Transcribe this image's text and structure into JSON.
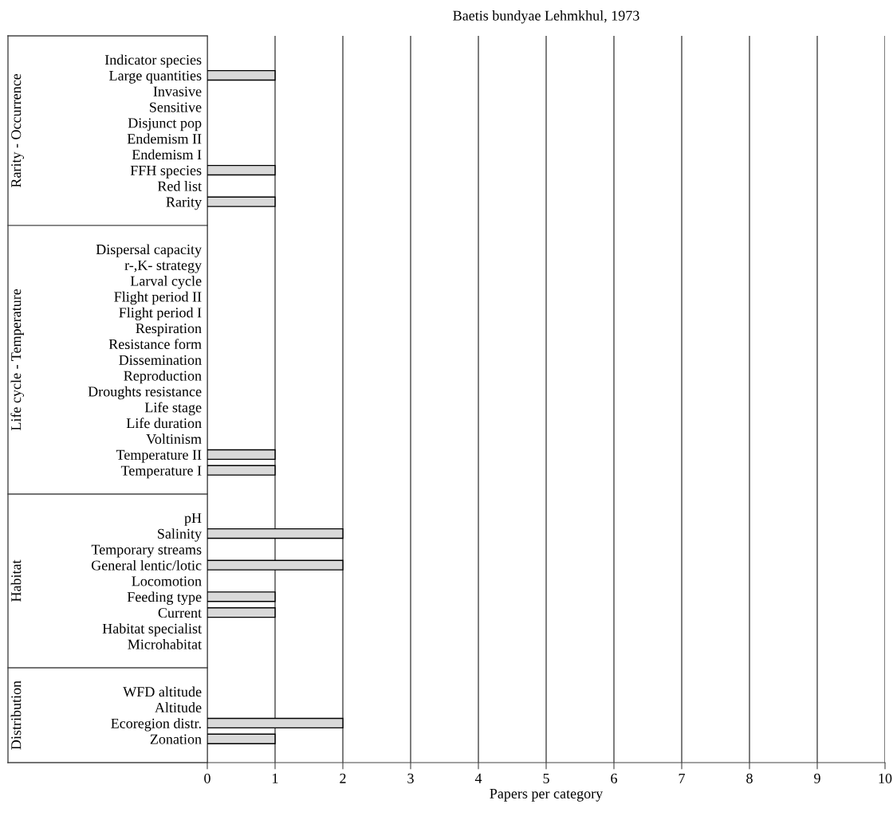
{
  "chart_data": [
    {
      "type": "bar",
      "orientation": "horizontal",
      "title": "Baetis bundyae Lehmkhul, 1973",
      "ylabel": "Rarity - Occurrence",
      "categories": [
        "Indicator species",
        "Large quantities",
        "Invasive",
        "Sensitive",
        "Disjunct pop",
        "Endemism II",
        "Endemism I",
        "FFH species",
        "Red list",
        "Rarity"
      ],
      "values": [
        null,
        1,
        null,
        null,
        null,
        null,
        null,
        1,
        null,
        1
      ],
      "color": "#d9d9d9",
      "xlim": [
        0,
        10
      ],
      "xticks": [
        0,
        1,
        2,
        3,
        4,
        5,
        6,
        7,
        8,
        9,
        10
      ],
      "grid": "x",
      "tick_labels": "y"
    },
    {
      "type": "bar",
      "orientation": "horizontal",
      "ylabel": "Life cycle - Temperature",
      "categories": [
        "Dispersal capacity",
        "r-,K- strategy",
        "Larval cycle",
        "Flight period II",
        "Flight period I",
        "Respiration",
        "Resistance form",
        "Dissemination",
        "Reproduction",
        "Droughts resistance",
        "Life stage",
        "Life duration",
        "Voltinism",
        "Temperature II",
        "Temperature I"
      ],
      "values": [
        null,
        null,
        null,
        null,
        null,
        null,
        null,
        null,
        null,
        null,
        null,
        null,
        null,
        1,
        1
      ],
      "color": "#d9d9d9",
      "xlim": [
        0,
        10
      ],
      "xticks": [
        0,
        1,
        2,
        3,
        4,
        5,
        6,
        7,
        8,
        9,
        10
      ],
      "grid": "x",
      "tick_labels": "y"
    },
    {
      "type": "bar",
      "orientation": "horizontal",
      "ylabel": "Habitat",
      "categories": [
        "pH",
        "Salinity",
        "Temporary streams",
        "General lentic/lotic",
        "Locomotion",
        "Feeding type",
        "Current",
        "Habitat specialist",
        "Microhabitat"
      ],
      "values": [
        null,
        2,
        null,
        2,
        null,
        1,
        1,
        null,
        null
      ],
      "color": "#d9d9d9",
      "xlim": [
        0,
        10
      ],
      "xticks": [
        0,
        1,
        2,
        3,
        4,
        5,
        6,
        7,
        8,
        9,
        10
      ],
      "grid": "x",
      "tick_labels": "y"
    },
    {
      "type": "bar",
      "orientation": "horizontal",
      "ylabel": "Distribution",
      "xlabel": "Papers per category",
      "categories": [
        "WFD altitude",
        "Altitude",
        "Ecoregion distr.",
        "Zonation"
      ],
      "values": [
        null,
        null,
        2,
        1
      ],
      "color": "#d9d9d9",
      "xlim": [
        0,
        10
      ],
      "xticks": [
        0,
        1,
        2,
        3,
        4,
        5,
        6,
        7,
        8,
        9,
        10
      ],
      "grid": "x"
    }
  ]
}
